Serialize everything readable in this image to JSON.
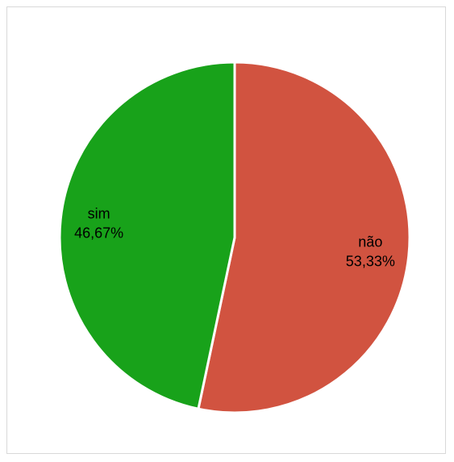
{
  "chart_data": {
    "type": "pie",
    "title": "",
    "start_angle_deg": 0,
    "direction": "clockwise",
    "slices": [
      {
        "label": "não",
        "value": 53.33,
        "percent_label": "53,33%",
        "color": "#d15340"
      },
      {
        "label": "sim",
        "value": 46.67,
        "percent_label": "46,67%",
        "color": "#18a21a"
      }
    ],
    "slice_border_color": "#ffffff",
    "legend": "none"
  }
}
